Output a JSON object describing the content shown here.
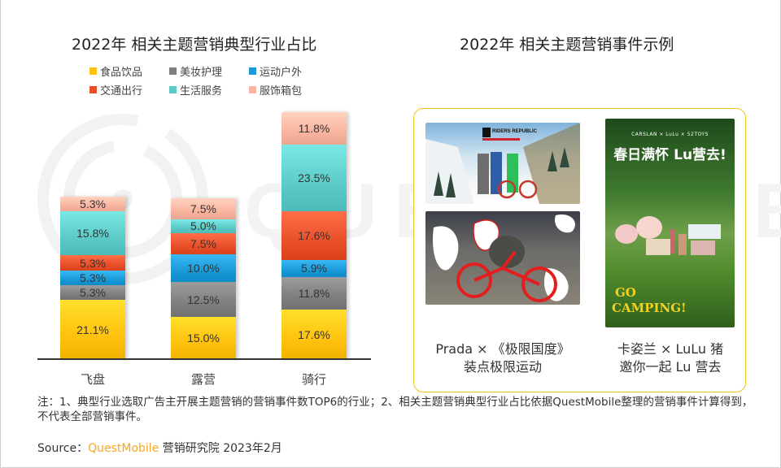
{
  "left_title": "2022年 相关主题营销典型行业占比",
  "right_title": "2022年 相关主题营销事件示例",
  "legend": [
    {
      "label": "食品饮品",
      "color": "#FFC20E"
    },
    {
      "label": "美妆护理",
      "color": "#7F7F7F"
    },
    {
      "label": "运动户外",
      "color": "#1A9AD6"
    },
    {
      "label": "交通出行",
      "color": "#E9502A"
    },
    {
      "label": "生活服务",
      "color": "#5CCBC8"
    },
    {
      "label": "服饰箱包",
      "color": "#F9B5A0"
    }
  ],
  "bars": [
    {
      "category": "飞盘",
      "segments": [
        {
          "series": "食品饮品",
          "label": "21.1%"
        },
        {
          "series": "美妆护理",
          "label": "5.3%"
        },
        {
          "series": "运动户外",
          "label": "5.3%"
        },
        {
          "series": "交通出行",
          "label": "5.3%"
        },
        {
          "series": "生活服务",
          "label": "15.8%"
        },
        {
          "series": "服饰箱包",
          "label": "5.3%"
        }
      ]
    },
    {
      "category": "露营",
      "segments": [
        {
          "series": "食品饮品",
          "label": "15.0%"
        },
        {
          "series": "美妆护理",
          "label": "12.5%"
        },
        {
          "series": "运动户外",
          "label": "10.0%"
        },
        {
          "series": "交通出行",
          "label": "7.5%"
        },
        {
          "series": "生活服务",
          "label": "5.0%"
        },
        {
          "series": "服饰箱包",
          "label": "7.5%"
        }
      ]
    },
    {
      "category": "骑行",
      "segments": [
        {
          "series": "食品饮品",
          "label": "17.6%"
        },
        {
          "series": "美妆护理",
          "label": "11.8%"
        },
        {
          "series": "运动户外",
          "label": "5.9%"
        },
        {
          "series": "交通出行",
          "label": "17.6%"
        },
        {
          "series": "生活服务",
          "label": "23.5%"
        },
        {
          "series": "服饰箱包",
          "label": "11.8%"
        }
      ]
    }
  ],
  "chart_data": {
    "type": "bar",
    "stacked": true,
    "title": "2022年 相关主题营销典型行业占比",
    "xlabel": "",
    "ylabel": "",
    "categories": [
      "飞盘",
      "露营",
      "骑行"
    ],
    "series": [
      {
        "name": "食品饮品",
        "color": "#FFC20E",
        "values": [
          21.1,
          15.0,
          17.6
        ]
      },
      {
        "name": "美妆护理",
        "color": "#7F7F7F",
        "values": [
          5.3,
          12.5,
          11.8
        ]
      },
      {
        "name": "运动户外",
        "color": "#1A9AD6",
        "values": [
          5.3,
          10.0,
          5.9
        ]
      },
      {
        "name": "交通出行",
        "color": "#E9502A",
        "values": [
          5.3,
          7.5,
          17.6
        ]
      },
      {
        "name": "生活服务",
        "color": "#5CCBC8",
        "values": [
          15.8,
          5.0,
          23.5
        ]
      },
      {
        "name": "服饰箱包",
        "color": "#F9B5A0",
        "values": [
          5.3,
          7.5,
          11.8
        ]
      }
    ],
    "value_format": "percent",
    "legend_position": "top",
    "grid": false
  },
  "examples": [
    {
      "line1": "Prada × 《极限国度》",
      "line2": "装点极限运动"
    },
    {
      "line1": "卡姿兰 × LuLu 猪",
      "line2": "邀你一起 Lu 营去"
    }
  ],
  "poster": {
    "brands": "CARSLAN × LuLu × 52TOYS",
    "headline": "春日满怀 Lu营去!",
    "go": "GO",
    "camping": "CAMPING!"
  },
  "game_poster": {
    "logo": "RIDERS REPUBLIC"
  },
  "watermark": "QUESTMOBILE",
  "note": "注：1、典型行业选取广告主开展主题营销的营销事件数TOP6的行业；2、相关主题营销典型行业占比依据QuestMobile整理的营销事件计算得到，不代表全部营销事件。",
  "source": {
    "prefix": "Source：",
    "brand": "QuestMobile",
    "suffix": " 营销研究院 2023年2月"
  }
}
